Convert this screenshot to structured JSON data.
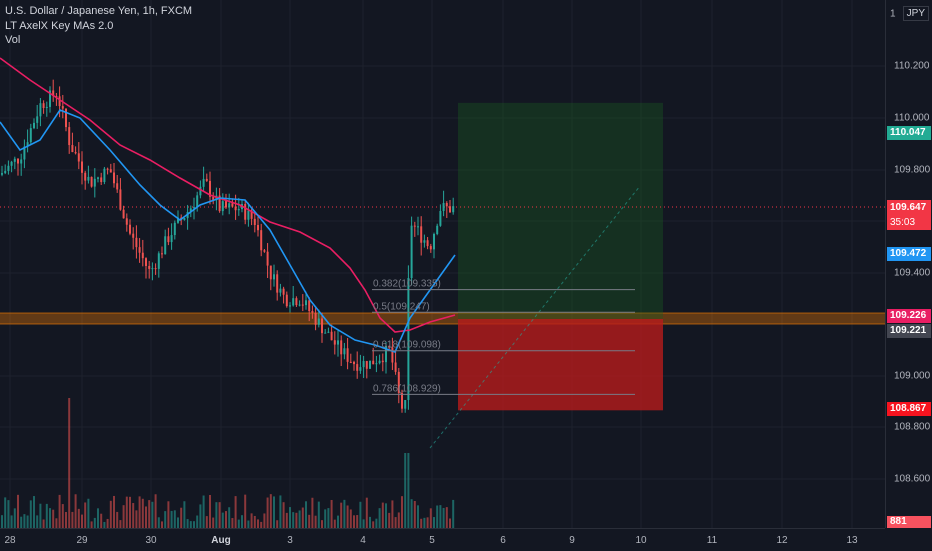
{
  "legend": {
    "symbol": "U.S. Dollar / Japanese Yen, 1h, FXCM",
    "indicator": "LT AxelX Key MAs 2.0",
    "volume": "Vol"
  },
  "price_axis": {
    "currency_button": "JPY",
    "top_partial": "1",
    "labels": [
      "110.200",
      "110.000",
      "109.800",
      "109.400",
      "109.000",
      "108.800",
      "108.600"
    ],
    "tags": {
      "target": {
        "value": "110.047",
        "color": "#22ab94"
      },
      "last": {
        "value": "109.647",
        "countdown": "35:03",
        "color": "#f23645"
      },
      "ma_blue": {
        "value": "109.472",
        "color": "#2196f3"
      },
      "ma_pink": {
        "value": "109.226",
        "color": "#e91e63"
      },
      "level": {
        "value": "109.221",
        "color": "#434651"
      },
      "stop": {
        "value": "108.867",
        "color": "#f7131f"
      },
      "volume": {
        "value": "881",
        "color": "#f7525f"
      }
    }
  },
  "time_axis": {
    "labels": [
      "28",
      "29",
      "30",
      "Aug",
      "3",
      "4",
      "5",
      "6",
      "9",
      "10",
      "11",
      "12",
      "13"
    ]
  },
  "fib_levels": [
    {
      "ratio": "0.382",
      "price": "109.335"
    },
    {
      "ratio": "0.5",
      "price": "109.247"
    },
    {
      "ratio": "0.618",
      "price": "109.098"
    },
    {
      "ratio": "0.786",
      "price": "108.929"
    }
  ],
  "position": {
    "entry": 109.221,
    "target": 110.047,
    "stop": 108.867
  },
  "colors": {
    "bg": "#131722",
    "up": "#26a69a",
    "down": "#ef5350",
    "ma_fast": "#2196f3",
    "ma_slow": "#e91e63"
  }
}
